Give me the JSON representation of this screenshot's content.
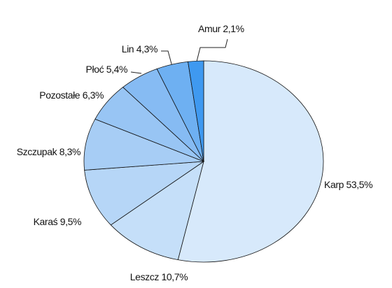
{
  "chart_data": {
    "type": "pie",
    "categories": [
      "Karp",
      "Leszcz",
      "Karaś",
      "Szczupak",
      "Pozostałe",
      "Płoć",
      "Lin",
      "Amur"
    ],
    "values": [
      53.5,
      10.7,
      9.5,
      8.3,
      6.3,
      5.4,
      4.3,
      2.1
    ],
    "value_labels": [
      "53,5%",
      "10,7%",
      "9,5%",
      "8,3%",
      "6,3%",
      "5,4%",
      "4,3%",
      "2,1%"
    ],
    "colors": [
      "#d7e9fb",
      "#c5dff9",
      "#b6d6f7",
      "#a7cdf5",
      "#98c5f4",
      "#86bbf3",
      "#6eb0f2",
      "#3f99f0"
    ]
  }
}
